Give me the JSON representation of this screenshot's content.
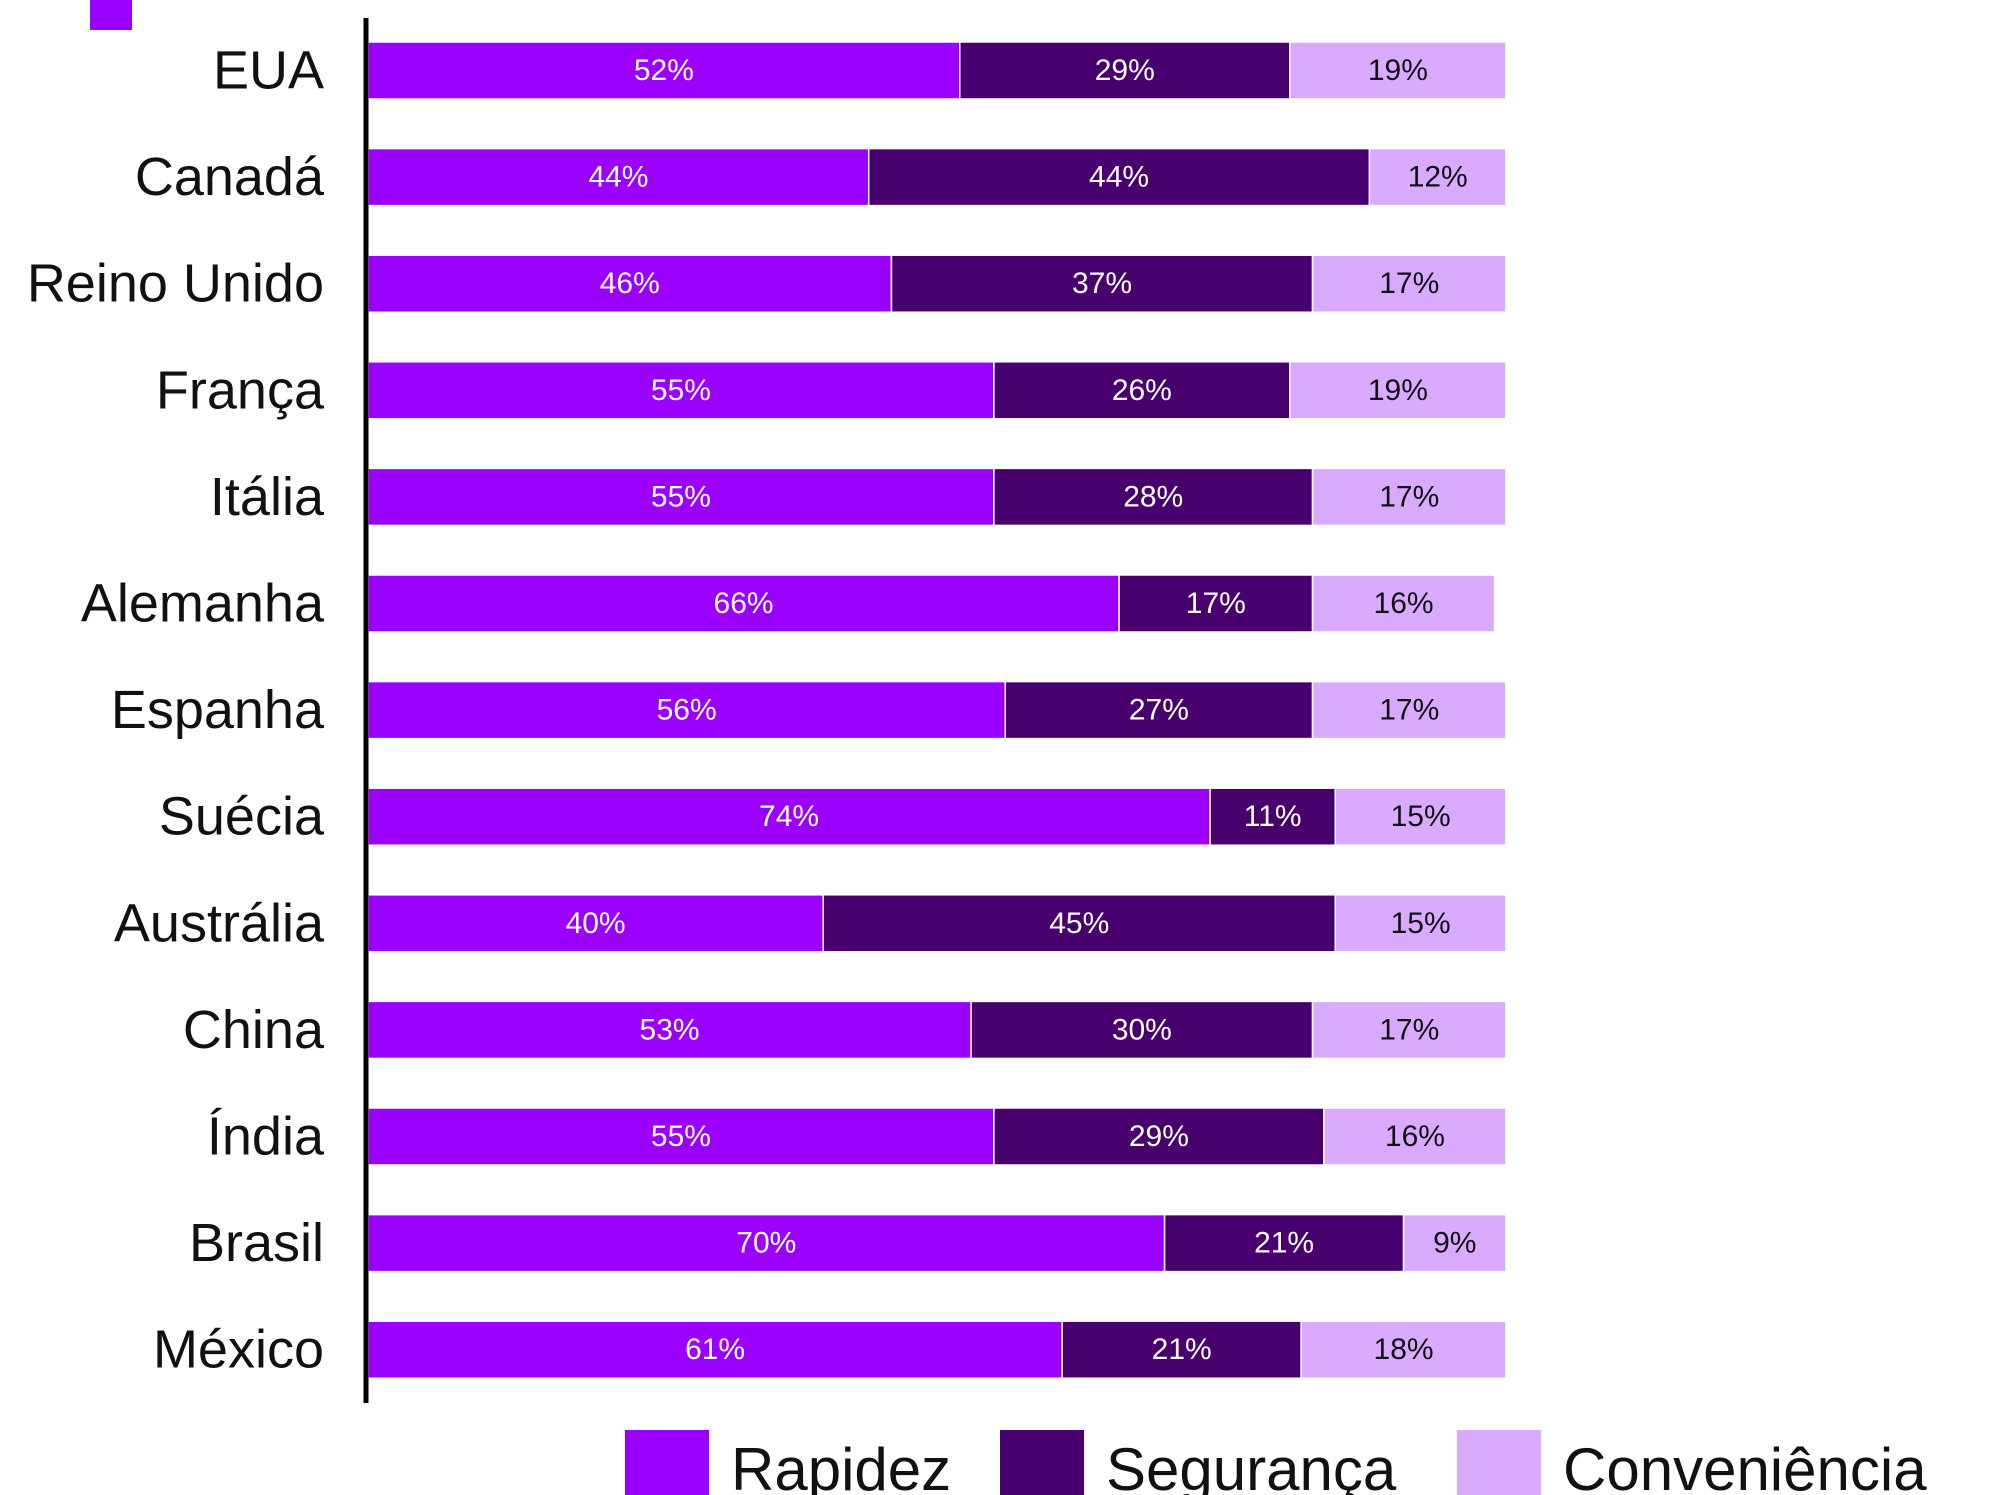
{
  "chart_data": {
    "type": "bar",
    "orientation": "horizontal",
    "stacked": true,
    "categories": [
      "EUA",
      "Canadá",
      "Reino Unido",
      "França",
      "Itália",
      "Alemanha",
      "Espanha",
      "Suécia",
      "Austrália",
      "China",
      "Índia",
      "Brasil",
      "México"
    ],
    "series": [
      {
        "name": "Rapidez",
        "color": "#9b00ff",
        "label_color": "#ffffff",
        "values": [
          52,
          44,
          46,
          55,
          55,
          66,
          56,
          74,
          40,
          53,
          55,
          70,
          61
        ]
      },
      {
        "name": "Segurança",
        "color": "#48006e",
        "label_color": "#ffffff",
        "values": [
          29,
          44,
          37,
          26,
          28,
          17,
          27,
          11,
          45,
          30,
          29,
          21,
          21
        ]
      },
      {
        "name": "Conveniência",
        "color": "#d9aaff",
        "label_color": "#111111",
        "values": [
          19,
          12,
          17,
          19,
          17,
          16,
          17,
          15,
          15,
          17,
          16,
          9,
          18
        ]
      }
    ],
    "value_suffix": "%",
    "xlim": [
      0,
      100
    ],
    "grid": false,
    "legend_position": "bottom-right",
    "title": "",
    "xlabel": "",
    "ylabel": ""
  }
}
